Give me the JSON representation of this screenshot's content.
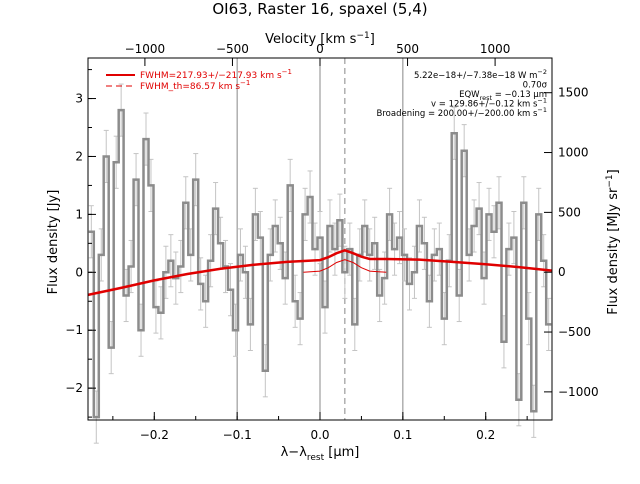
{
  "chart_data": {
    "type": "line",
    "title": "OI63, Raster 16, spaxel (5,4)",
    "xlabel": "λ−λ",
    "xlabel_sub": "rest",
    "xlabel_unit": " [μm]",
    "ylabel_left": "Flux density [Jy]",
    "ylabel_right": "Flux density [MJy sr",
    "ylabel_right_sup": "−1",
    "ylabel_right_end": "]",
    "xlabel_top": "Velocity [km s",
    "xlabel_top_sup": "−1",
    "xlabel_top_end": "]",
    "xlim": [
      -0.28,
      0.28
    ],
    "ylim": [
      -2.55,
      3.7
    ],
    "right_ylim": [
      -1235,
      1790
    ],
    "top_xlim": [
      -1325,
      1325
    ],
    "x_ticks": [
      -0.2,
      -0.1,
      0.0,
      0.1,
      0.2
    ],
    "x_tick_labels": [
      "−0.2",
      "−0.1",
      "0.0",
      "0.1",
      "0.2"
    ],
    "y_ticks": [
      -2,
      -1,
      0,
      1,
      2,
      3
    ],
    "y_tick_labels": [
      "−2",
      "−1",
      "0",
      "1",
      "2",
      "3"
    ],
    "right_ticks": [
      -1000,
      -500,
      0,
      500,
      1000,
      1500
    ],
    "right_tick_labels": [
      "−1000",
      "−500",
      "0",
      "500",
      "1000",
      "1500"
    ],
    "top_ticks": [
      -1000,
      -500,
      0,
      500,
      1000
    ],
    "top_tick_labels": [
      "−1000",
      "−500",
      "0",
      "500",
      "1000"
    ],
    "vlines_solid": [
      -0.1,
      0.0,
      0.1
    ],
    "vline_dashed": 0.03,
    "legend": [
      {
        "label": "FWHM=217.93+/−217.93 km s",
        "sup": "−1",
        "style": "solid"
      },
      {
        "label": "FWHM_th=86.57 km s",
        "sup": "−1",
        "style": "dashed"
      }
    ],
    "annotations": [
      {
        "text": "5.22e−18+/−7.38e−18 W m",
        "sup": "−2"
      },
      {
        "text": "0.70σ"
      },
      {
        "text": "EQW",
        "sub": "rest",
        "tail": " = −0.13 μm"
      },
      {
        "text": "v = 129.86+/−0.12 km s",
        "sup": "−1"
      },
      {
        "text": "Broadening = 200.00+/−200.00 km s",
        "sup": "−1"
      }
    ],
    "series": [
      {
        "style": "step",
        "color": "#8c8c8c",
        "x": [
          -0.276,
          -0.27,
          -0.264,
          -0.258,
          -0.252,
          -0.246,
          -0.24,
          -0.234,
          -0.228,
          -0.222,
          -0.216,
          -0.21,
          -0.204,
          -0.198,
          -0.192,
          -0.186,
          -0.18,
          -0.174,
          -0.168,
          -0.162,
          -0.156,
          -0.15,
          -0.144,
          -0.138,
          -0.132,
          -0.126,
          -0.12,
          -0.114,
          -0.108,
          -0.102,
          -0.096,
          -0.09,
          -0.084,
          -0.078,
          -0.072,
          -0.066,
          -0.06,
          -0.054,
          -0.048,
          -0.042,
          -0.036,
          -0.03,
          -0.024,
          -0.018,
          -0.012,
          -0.006,
          0.0,
          0.006,
          0.012,
          0.018,
          0.024,
          0.03,
          0.036,
          0.042,
          0.048,
          0.054,
          0.06,
          0.066,
          0.072,
          0.078,
          0.084,
          0.09,
          0.096,
          0.102,
          0.108,
          0.114,
          0.12,
          0.126,
          0.132,
          0.138,
          0.144,
          0.15,
          0.156,
          0.162,
          0.168,
          0.174,
          0.18,
          0.186,
          0.192,
          0.198,
          0.204,
          0.21,
          0.216,
          0.222,
          0.228,
          0.234,
          0.24,
          0.246,
          0.252,
          0.258,
          0.264,
          0.27,
          0.276
        ],
        "y": [
          0.7,
          -2.5,
          0.3,
          2.0,
          -1.3,
          1.9,
          2.8,
          -0.4,
          0.1,
          1.6,
          -1.0,
          2.3,
          1.5,
          -0.6,
          -0.7,
          0.0,
          0.2,
          -0.1,
          0.1,
          1.2,
          0.3,
          1.6,
          -0.2,
          -0.5,
          0.2,
          1.1,
          0.5,
          0.1,
          -0.3,
          -1.0,
          0.3,
          0.0,
          -0.9,
          1.0,
          0.6,
          -1.7,
          0.3,
          0.8,
          0.5,
          -0.1,
          1.5,
          -0.5,
          -0.8,
          1.0,
          1.3,
          0.4,
          0.6,
          -0.6,
          0.8,
          0.4,
          0.9,
          0.0,
          0.4,
          -0.9,
          0.3,
          0.8,
          0.3,
          0.5,
          -0.4,
          -0.1,
          1.0,
          0.4,
          0.6,
          0.3,
          -0.2,
          0.0,
          0.8,
          0.5,
          -0.5,
          0.3,
          0.4,
          -0.8,
          0.2,
          2.4,
          -0.4,
          2.1,
          0.3,
          0.8,
          1.1,
          -0.1,
          1.0,
          0.7,
          1.2,
          -1.2,
          0.4,
          0.6,
          -2.2,
          1.2,
          -0.8,
          -2.4,
          1.0,
          0.2,
          -0.9
        ],
        "yerr": 0.45
      },
      {
        "style": "line",
        "color": "#e00000",
        "x": [
          -0.28,
          -0.24,
          -0.2,
          -0.16,
          -0.12,
          -0.08,
          -0.04,
          0.0,
          0.01,
          0.02,
          0.03,
          0.04,
          0.05,
          0.06,
          0.08,
          0.12,
          0.16,
          0.2,
          0.24,
          0.28
        ],
        "y": [
          -0.39,
          -0.27,
          -0.14,
          -0.03,
          0.06,
          0.13,
          0.18,
          0.21,
          0.26,
          0.33,
          0.38,
          0.33,
          0.27,
          0.23,
          0.23,
          0.22,
          0.18,
          0.14,
          0.09,
          0.03
        ]
      },
      {
        "style": "thin",
        "color": "#e00000",
        "x": [
          -0.02,
          0.0,
          0.01,
          0.02,
          0.03,
          0.04,
          0.05,
          0.06,
          0.08
        ],
        "y": [
          0.0,
          0.02,
          0.08,
          0.17,
          0.22,
          0.17,
          0.08,
          0.02,
          0.0
        ]
      }
    ]
  }
}
